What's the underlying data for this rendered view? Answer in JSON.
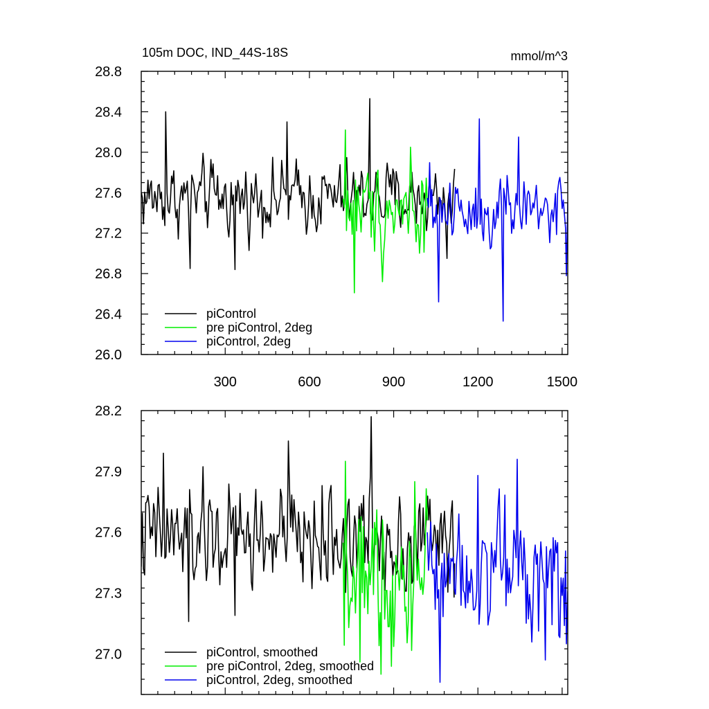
{
  "chart_data": [
    {
      "type": "line",
      "title": "105m DOC, IND_44S-18S",
      "units": "mmol/m^3",
      "xlim": [
        1,
        1520
      ],
      "ylim": [
        26.0,
        28.8
      ],
      "xticks": [
        300,
        600,
        900,
        1200,
        1500
      ],
      "xtick_labels": [
        "300",
        "600",
        "900",
        "1200",
        "1500"
      ],
      "yticks": [
        26.0,
        26.4,
        26.8,
        27.2,
        27.6,
        28.0,
        28.4,
        28.8
      ],
      "ytick_labels": [
        "26.0",
        "26.4",
        "26.8",
        "27.2",
        "27.6",
        "28.0",
        "28.4",
        "28.8"
      ],
      "legend_position": "bottom-left",
      "series": [
        {
          "name": "piControl",
          "color": "#000000",
          "x_start": 1,
          "x_end": 1120,
          "mean": 27.55,
          "amplitude": 0.22,
          "extremes": [
            [
              88,
              28.4
            ],
            [
              175,
              26.85
            ],
            [
              335,
              26.84
            ],
            [
              520,
              28.3
            ],
            [
              815,
              28.53
            ],
            [
              1090,
              26.95
            ]
          ]
        },
        {
          "name": "pre piControl, 2deg",
          "color": "#00ee00",
          "x_start": 720,
          "x_end": 1020,
          "mean": 27.45,
          "amplitude": 0.28,
          "extremes": [
            [
              728,
              28.22
            ],
            [
              760,
              26.61
            ],
            [
              860,
              26.72
            ],
            [
              960,
              28.05
            ]
          ]
        },
        {
          "name": "piControl, 2deg",
          "color": "#0000ee",
          "x_start": 1020,
          "x_end": 1520,
          "mean": 27.45,
          "amplitude": 0.25,
          "extremes": [
            [
              1060,
              26.52
            ],
            [
              1205,
              28.33
            ],
            [
              1290,
              26.33
            ],
            [
              1345,
              28.15
            ],
            [
              1515,
              26.78
            ]
          ]
        }
      ]
    },
    {
      "type": "line",
      "title": "",
      "xlim": [
        1,
        1520
      ],
      "ylim": [
        26.8,
        28.2
      ],
      "xticks": [
        300,
        600,
        900,
        1200,
        1500
      ],
      "yticks": [
        27.0,
        27.3,
        27.6,
        27.9,
        28.2
      ],
      "ytick_labels": [
        "27.0",
        "27.3",
        "27.6",
        "27.9",
        "28.2"
      ],
      "legend_position": "bottom-left",
      "series": [
        {
          "name": "piControl, smoothed",
          "color": "#000000",
          "x_start": 1,
          "x_end": 1120,
          "mean": 27.57,
          "amplitude": 0.17,
          "extremes": [
            [
              80,
              27.99
            ],
            [
              170,
              27.16
            ],
            [
              335,
              27.19
            ],
            [
              525,
              28.05
            ],
            [
              820,
              28.17
            ],
            [
              1115,
              27.28
            ]
          ]
        },
        {
          "name": "pre piControl, 2deg, smoothed",
          "color": "#00ee00",
          "x_start": 720,
          "x_end": 1020,
          "mean": 27.4,
          "amplitude": 0.22,
          "extremes": [
            [
              728,
              27.95
            ],
            [
              780,
              26.96
            ],
            [
              855,
              26.9
            ],
            [
              975,
              27.85
            ]
          ]
        },
        {
          "name": "piControl, 2deg, smoothed",
          "color": "#0000ee",
          "x_start": 1020,
          "x_end": 1520,
          "mean": 27.45,
          "amplitude": 0.2,
          "extremes": [
            [
              1065,
              26.86
            ],
            [
              1200,
              27.88
            ],
            [
              1340,
              27.96
            ],
            [
              1440,
              26.97
            ],
            [
              1515,
              27.05
            ]
          ]
        }
      ]
    }
  ]
}
